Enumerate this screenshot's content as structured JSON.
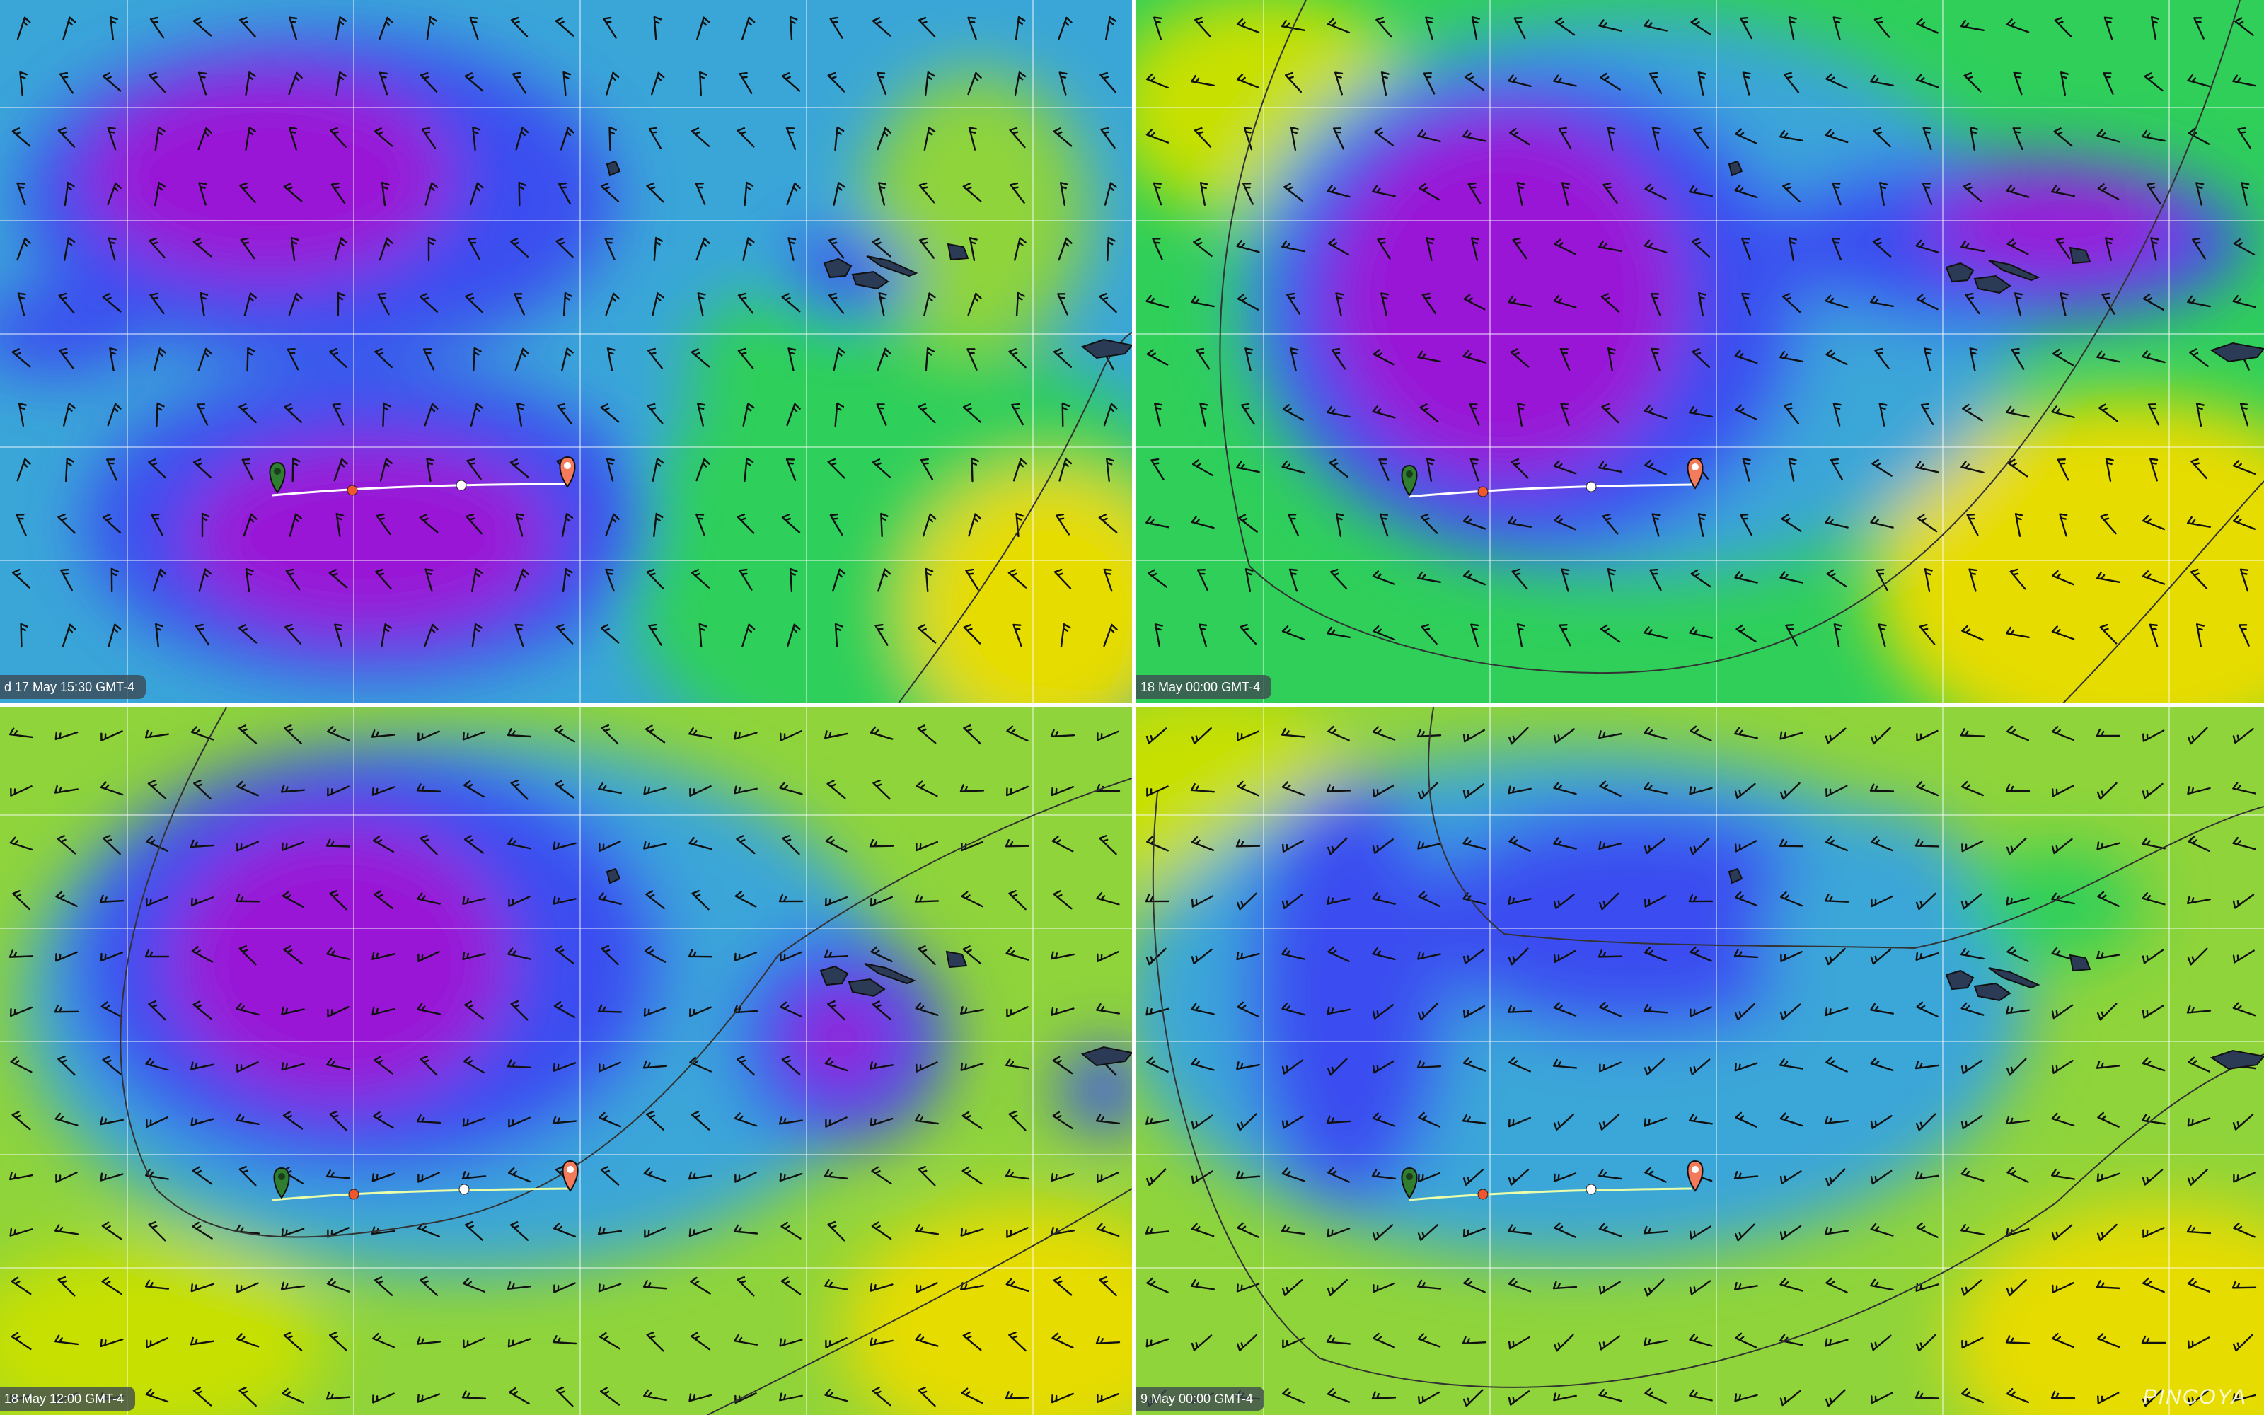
{
  "panels": [
    {
      "id": "panel-1",
      "timestamp": "d 17 May 15:30 GMT-4"
    },
    {
      "id": "panel-2",
      "timestamp": "18 May 00:00 GMT-4"
    },
    {
      "id": "panel-3",
      "timestamp": "18 May 12:00 GMT-4"
    },
    {
      "id": "panel-4",
      "timestamp": "9 May 00:00 GMT-4"
    }
  ],
  "watermark": "PINCOYA",
  "colors": {
    "calm": "#9a12d6",
    "light": "#3a4df0",
    "moderate": "#3aa6d8",
    "fresh": "#2fcf5a",
    "strong": "#e6dc00",
    "route_start_marker": "#2f7d2f",
    "route_end_marker": "#f47a5c",
    "waypoint_orange": "#f2562e",
    "waypoint_white": "#ffffff"
  },
  "icons": {
    "start_marker": "map-pin-green-icon",
    "end_marker": "map-pin-orange-icon",
    "wind_barb": "wind-barb-icon",
    "calm_circle": "calm-circle-icon"
  }
}
